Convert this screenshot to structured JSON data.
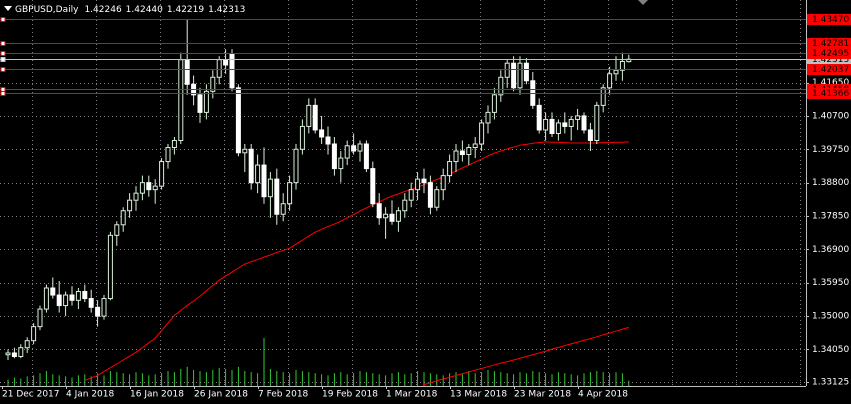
{
  "chart_data": {
    "type": "candlestick",
    "title": "GBPUSD,Daily",
    "quote": [
      {
        "value": 1.42246,
        "label": "1.42246"
      },
      {
        "value": 1.4244,
        "label": "1.42440"
      },
      {
        "value": 1.42219,
        "label": "1.42219"
      },
      {
        "value": 1.42313,
        "label": "1.42313"
      }
    ],
    "categories": [
      "21 Dec 2017",
      null,
      null,
      null,
      null,
      null,
      null,
      null,
      null,
      null,
      "4 Jan 2018",
      null,
      null,
      null,
      null,
      null,
      null,
      null,
      null,
      null,
      "16 Jan 2018",
      null,
      null,
      null,
      null,
      null,
      null,
      null,
      null,
      null,
      "26 Jan 2018",
      null,
      null,
      null,
      null,
      null,
      null,
      null,
      null,
      null,
      "7 Feb 2018",
      null,
      null,
      null,
      null,
      null,
      null,
      null,
      null,
      null,
      "19 Feb 2018",
      null,
      null,
      null,
      null,
      null,
      null,
      null,
      null,
      null,
      "1 Mar 2018",
      null,
      null,
      null,
      null,
      null,
      null,
      null,
      null,
      null,
      "13 Mar 2018",
      null,
      null,
      null,
      null,
      null,
      null,
      null,
      null,
      null,
      "23 Mar 2018",
      null,
      null,
      null,
      null,
      null,
      null,
      null,
      null,
      null,
      "4 Apr 2018",
      null,
      null,
      null,
      null,
      null,
      null,
      null
    ],
    "open": [
      1.339,
      1.3395,
      1.3385,
      1.341,
      1.343,
      1.347,
      1.352,
      1.358,
      1.356,
      1.353,
      1.356,
      1.3545,
      1.357,
      1.355,
      1.3525,
      1.35,
      1.355,
      1.373,
      1.376,
      1.38,
      1.383,
      1.385,
      1.388,
      1.386,
      1.387,
      1.394,
      1.398,
      1.4,
      1.423,
      1.416,
      1.413,
      1.408,
      1.414,
      1.418,
      1.423,
      1.4245,
      1.415,
      1.3965,
      1.3975,
      1.388,
      1.393,
      1.384,
      1.389,
      1.379,
      1.382,
      1.388,
      1.3975,
      1.404,
      1.41,
      1.403,
      1.401,
      1.399,
      1.392,
      1.395,
      1.3985,
      1.397,
      1.399,
      1.392,
      1.382,
      1.378,
      1.379,
      1.377,
      1.38,
      1.383,
      1.386,
      1.389,
      1.388,
      1.381,
      1.386,
      1.39,
      1.394,
      1.397,
      1.396,
      1.398,
      1.399,
      1.405,
      1.408,
      1.413,
      1.418,
      1.422,
      1.415,
      1.422,
      1.417,
      1.41,
      1.403,
      1.406,
      1.402,
      1.405,
      1.404,
      1.406,
      1.407,
      1.403,
      1.4,
      1.41,
      1.415,
      1.419,
      1.42,
      1.42246
    ],
    "high": [
      1.3405,
      1.341,
      1.342,
      1.344,
      1.348,
      1.353,
      1.359,
      1.361,
      1.36,
      1.357,
      1.3585,
      1.358,
      1.359,
      1.3575,
      1.3545,
      1.356,
      1.374,
      1.377,
      1.381,
      1.385,
      1.387,
      1.39,
      1.39,
      1.389,
      1.395,
      1.399,
      1.401,
      1.425,
      1.4345,
      1.4185,
      1.415,
      1.416,
      1.42,
      1.424,
      1.426,
      1.426,
      1.416,
      1.399,
      1.399,
      1.396,
      1.398,
      1.391,
      1.392,
      1.385,
      1.39,
      1.399,
      1.406,
      1.412,
      1.412,
      1.407,
      1.404,
      1.401,
      1.397,
      1.4,
      1.402,
      1.4,
      1.4,
      1.394,
      1.385,
      1.381,
      1.383,
      1.381,
      1.385,
      1.388,
      1.391,
      1.392,
      1.39,
      1.387,
      1.392,
      1.396,
      1.399,
      1.4,
      1.399,
      1.401,
      1.406,
      1.41,
      1.415,
      1.42,
      1.423,
      1.424,
      1.424,
      1.4235,
      1.4195,
      1.412,
      1.408,
      1.408,
      1.406,
      1.408,
      1.407,
      1.409,
      1.408,
      1.405,
      1.411,
      1.416,
      1.421,
      1.424,
      1.425,
      1.4244
    ],
    "low": [
      1.3375,
      1.338,
      1.338,
      1.3395,
      1.342,
      1.346,
      1.351,
      1.355,
      1.351,
      1.35,
      1.353,
      1.352,
      1.354,
      1.351,
      1.347,
      1.349,
      1.3545,
      1.37,
      1.374,
      1.378,
      1.38,
      1.383,
      1.384,
      1.382,
      1.386,
      1.392,
      1.396,
      1.399,
      1.413,
      1.41,
      1.405,
      1.406,
      1.412,
      1.416,
      1.419,
      1.414,
      1.3955,
      1.391,
      1.386,
      1.385,
      1.382,
      1.378,
      1.376,
      1.377,
      1.38,
      1.386,
      1.396,
      1.402,
      1.402,
      1.399,
      1.396,
      1.39,
      1.388,
      1.393,
      1.396,
      1.394,
      1.391,
      1.381,
      1.376,
      1.372,
      1.376,
      1.374,
      1.378,
      1.381,
      1.383,
      1.385,
      1.379,
      1.38,
      1.383,
      1.388,
      1.391,
      1.394,
      1.393,
      1.395,
      1.397,
      1.402,
      1.406,
      1.411,
      1.415,
      1.414,
      1.413,
      1.416,
      1.409,
      1.402,
      1.4,
      1.401,
      1.4,
      1.402,
      1.4,
      1.403,
      1.402,
      1.397,
      1.399,
      1.408,
      1.413,
      1.417,
      1.417,
      1.42219
    ],
    "close": [
      1.3395,
      1.3385,
      1.341,
      1.343,
      1.347,
      1.352,
      1.358,
      1.356,
      1.353,
      1.356,
      1.3545,
      1.357,
      1.355,
      1.3525,
      1.35,
      1.355,
      1.373,
      1.376,
      1.38,
      1.383,
      1.385,
      1.388,
      1.386,
      1.387,
      1.394,
      1.398,
      1.4,
      1.423,
      1.416,
      1.413,
      1.408,
      1.414,
      1.418,
      1.423,
      1.4215,
      1.415,
      1.3965,
      1.3975,
      1.388,
      1.393,
      1.384,
      1.389,
      1.379,
      1.382,
      1.388,
      1.3975,
      1.404,
      1.41,
      1.403,
      1.401,
      1.399,
      1.392,
      1.395,
      1.3985,
      1.397,
      1.399,
      1.392,
      1.382,
      1.378,
      1.379,
      1.377,
      1.38,
      1.383,
      1.386,
      1.389,
      1.388,
      1.381,
      1.386,
      1.39,
      1.394,
      1.397,
      1.396,
      1.398,
      1.399,
      1.405,
      1.408,
      1.413,
      1.418,
      1.422,
      1.415,
      1.422,
      1.417,
      1.41,
      1.403,
      1.406,
      1.402,
      1.405,
      1.404,
      1.406,
      1.407,
      1.403,
      1.4,
      1.41,
      1.415,
      1.419,
      1.42,
      1.4225,
      1.42313
    ],
    "up_color": "#000000",
    "down_color": "#ffffff",
    "wick_color": "#d8f0d8",
    "lines": [
      {
        "color": "#ff0000",
        "values": [
          null,
          null,
          null,
          null,
          null,
          null,
          null,
          null,
          null,
          null,
          null,
          null,
          1.3317,
          1.3324,
          1.3331,
          1.3342,
          1.3353,
          1.3364,
          1.3375,
          1.3386,
          1.3397,
          1.341,
          1.3424,
          1.3437,
          1.3459,
          1.348,
          1.3502,
          1.3516,
          1.353,
          1.3543,
          1.3557,
          1.3572,
          1.3587,
          1.3602,
          1.3614,
          1.3625,
          1.3637,
          1.3648,
          1.3655,
          1.3661,
          1.3668,
          1.3674,
          1.3681,
          1.3687,
          1.3693,
          1.3705,
          1.3716,
          1.3728,
          1.3739,
          1.3747,
          1.3755,
          1.3762,
          1.377,
          1.378,
          1.3789,
          1.3799,
          1.3808,
          1.3817,
          1.3825,
          1.3834,
          1.3842,
          1.3848,
          1.3855,
          1.3861,
          1.3867,
          1.3874,
          1.3882,
          1.3889,
          1.3896,
          1.3905,
          1.3913,
          1.3922,
          1.393,
          1.3939,
          1.3947,
          1.3956,
          1.3964,
          1.397,
          1.3976,
          1.3981,
          1.3987,
          1.3989,
          1.3992,
          1.3994,
          1.3996,
          1.3995,
          1.3995,
          1.3994,
          1.3993,
          1.3993,
          1.3993,
          1.3993,
          1.3993,
          1.3994,
          1.3994,
          1.3995,
          1.3995,
          1.3996
        ]
      },
      {
        "color": "#ff0000",
        "values": [
          null,
          null,
          null,
          null,
          null,
          null,
          null,
          null,
          null,
          null,
          null,
          null,
          null,
          null,
          null,
          null,
          null,
          null,
          null,
          null,
          null,
          null,
          null,
          null,
          null,
          null,
          null,
          null,
          null,
          null,
          null,
          null,
          null,
          null,
          null,
          null,
          null,
          null,
          null,
          null,
          null,
          null,
          null,
          null,
          null,
          null,
          null,
          null,
          null,
          null,
          null,
          null,
          null,
          null,
          null,
          null,
          null,
          null,
          null,
          null,
          null,
          null,
          null,
          null,
          null,
          1.3305,
          1.331,
          1.3316,
          1.3321,
          1.3326,
          1.3331,
          1.3336,
          1.3341,
          1.3346,
          1.3351,
          1.3356,
          1.3361,
          1.3366,
          1.337,
          1.3375,
          1.338,
          1.3385,
          1.339,
          1.3395,
          1.34,
          1.3406,
          1.3411,
          1.3416,
          1.3421,
          1.3426,
          1.3431,
          1.3436,
          1.3441,
          1.3447,
          1.3452,
          1.3457,
          1.3463,
          1.3468
        ]
      }
    ],
    "volume": {
      "color": "#32cd32",
      "values": [
        6,
        8,
        7,
        9,
        10,
        12,
        14,
        11,
        10,
        9,
        8,
        10,
        11,
        9,
        12,
        10,
        14,
        13,
        12,
        11,
        13,
        12,
        10,
        11,
        12,
        14,
        13,
        16,
        18,
        15,
        14,
        13,
        15,
        17,
        16,
        15,
        18,
        14,
        13,
        12,
        45,
        16,
        14,
        13,
        12,
        15,
        14,
        13,
        12,
        11,
        10,
        12,
        13,
        11,
        12,
        14,
        13,
        12,
        11,
        10,
        12,
        13,
        11,
        12,
        14,
        13,
        12,
        11,
        10,
        12,
        13,
        11,
        14,
        12,
        13,
        15,
        14,
        13,
        12,
        11,
        13,
        12,
        14,
        13,
        12,
        11,
        13,
        12,
        11,
        10,
        12,
        13,
        14,
        13,
        12,
        13,
        12,
        5
      ]
    },
    "ylim": [
      1.3301,
      1.44
    ],
    "yticks": [
      1.33125,
      {
        "value": 1.3405,
        "label": "1.34050"
      },
      {
        "value": 1.35,
        "label": "1.35000"
      },
      {
        "value": 1.3595,
        "label": "1.35950"
      },
      {
        "value": 1.369,
        "label": "1.36900"
      },
      {
        "value": 1.3785,
        "label": "1.37850"
      },
      {
        "value": 1.388,
        "label": "1.38800"
      },
      {
        "value": 1.3975,
        "label": "1.39750"
      },
      {
        "value": 1.407,
        "label": "1.40700"
      },
      {
        "value": 1.4165,
        "label": "1.41650"
      }
    ],
    "grid": true,
    "levels": [
      {
        "value": 1.42313,
        "label": "1.42313",
        "color": "#c0c0c0"
      },
      {
        "value": 1.4347,
        "label": "1.43470",
        "color": "#ff0000"
      },
      {
        "value": 1.42781,
        "label": "1.42781",
        "color": "#ff0000"
      },
      {
        "value": 1.42495,
        "label": "1.42495",
        "color": "#ff0000"
      },
      {
        "value": 1.42037,
        "label": "1.42037",
        "color": "#ff0000"
      },
      {
        "value": 1.41458,
        "label": "1.41458",
        "color": "#ff0000"
      },
      {
        "value": 1.41366,
        "label": "1.41366",
        "color": "#ff0000"
      }
    ]
  }
}
